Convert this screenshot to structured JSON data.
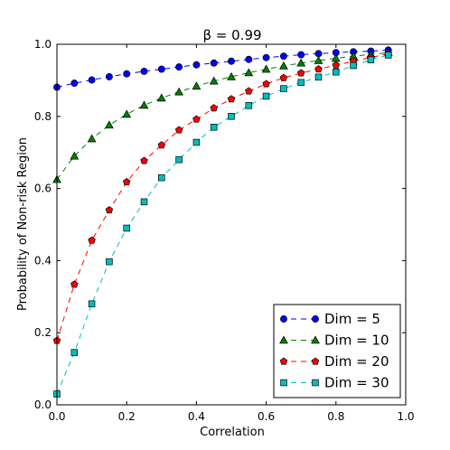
{
  "chart_data": {
    "type": "line",
    "title": "β = 0.99",
    "xlabel": "Correlation",
    "ylabel": "Probability of Non-risk Region",
    "xlim": [
      0.0,
      1.0
    ],
    "ylim": [
      0.0,
      1.0
    ],
    "xticks": [
      "0.0",
      "0.2",
      "0.4",
      "0.6",
      "0.8",
      "1.0"
    ],
    "yticks": [
      "0.0",
      "0.2",
      "0.4",
      "0.6",
      "0.8",
      "1.0"
    ],
    "grid": false,
    "legend_position": "bottom-right",
    "x": [
      0.0,
      0.05,
      0.1,
      0.15,
      0.2,
      0.25,
      0.3,
      0.35,
      0.4,
      0.45,
      0.5,
      0.55,
      0.6,
      0.65,
      0.7,
      0.75,
      0.8,
      0.85,
      0.9,
      0.95
    ],
    "series": [
      {
        "name": "Dim = 5",
        "color": "#0000ff",
        "marker": "circle",
        "values": [
          0.881,
          0.892,
          0.901,
          0.91,
          0.918,
          0.925,
          0.931,
          0.937,
          0.943,
          0.948,
          0.953,
          0.958,
          0.963,
          0.967,
          0.971,
          0.974,
          0.977,
          0.979,
          0.981,
          0.984
        ]
      },
      {
        "name": "Dim = 10",
        "color": "#008000",
        "marker": "triangle",
        "values": [
          0.625,
          0.69,
          0.738,
          0.776,
          0.806,
          0.831,
          0.851,
          0.868,
          0.884,
          0.898,
          0.91,
          0.921,
          0.931,
          0.94,
          0.948,
          0.955,
          0.961,
          0.967,
          0.972,
          0.977
        ]
      },
      {
        "name": "Dim = 20",
        "color": "#ff0000",
        "marker": "pentagon",
        "values": [
          0.178,
          0.334,
          0.456,
          0.54,
          0.618,
          0.677,
          0.72,
          0.762,
          0.792,
          0.823,
          0.848,
          0.87,
          0.89,
          0.907,
          0.92,
          0.931,
          0.942,
          0.953,
          0.963,
          0.974
        ]
      },
      {
        "name": "Dim = 30",
        "color": "#00bfbf",
        "marker": "square",
        "values": [
          0.03,
          0.145,
          0.28,
          0.397,
          0.49,
          0.563,
          0.63,
          0.68,
          0.728,
          0.77,
          0.8,
          0.83,
          0.856,
          0.877,
          0.894,
          0.909,
          0.923,
          0.941,
          0.957,
          0.97
        ]
      }
    ]
  }
}
